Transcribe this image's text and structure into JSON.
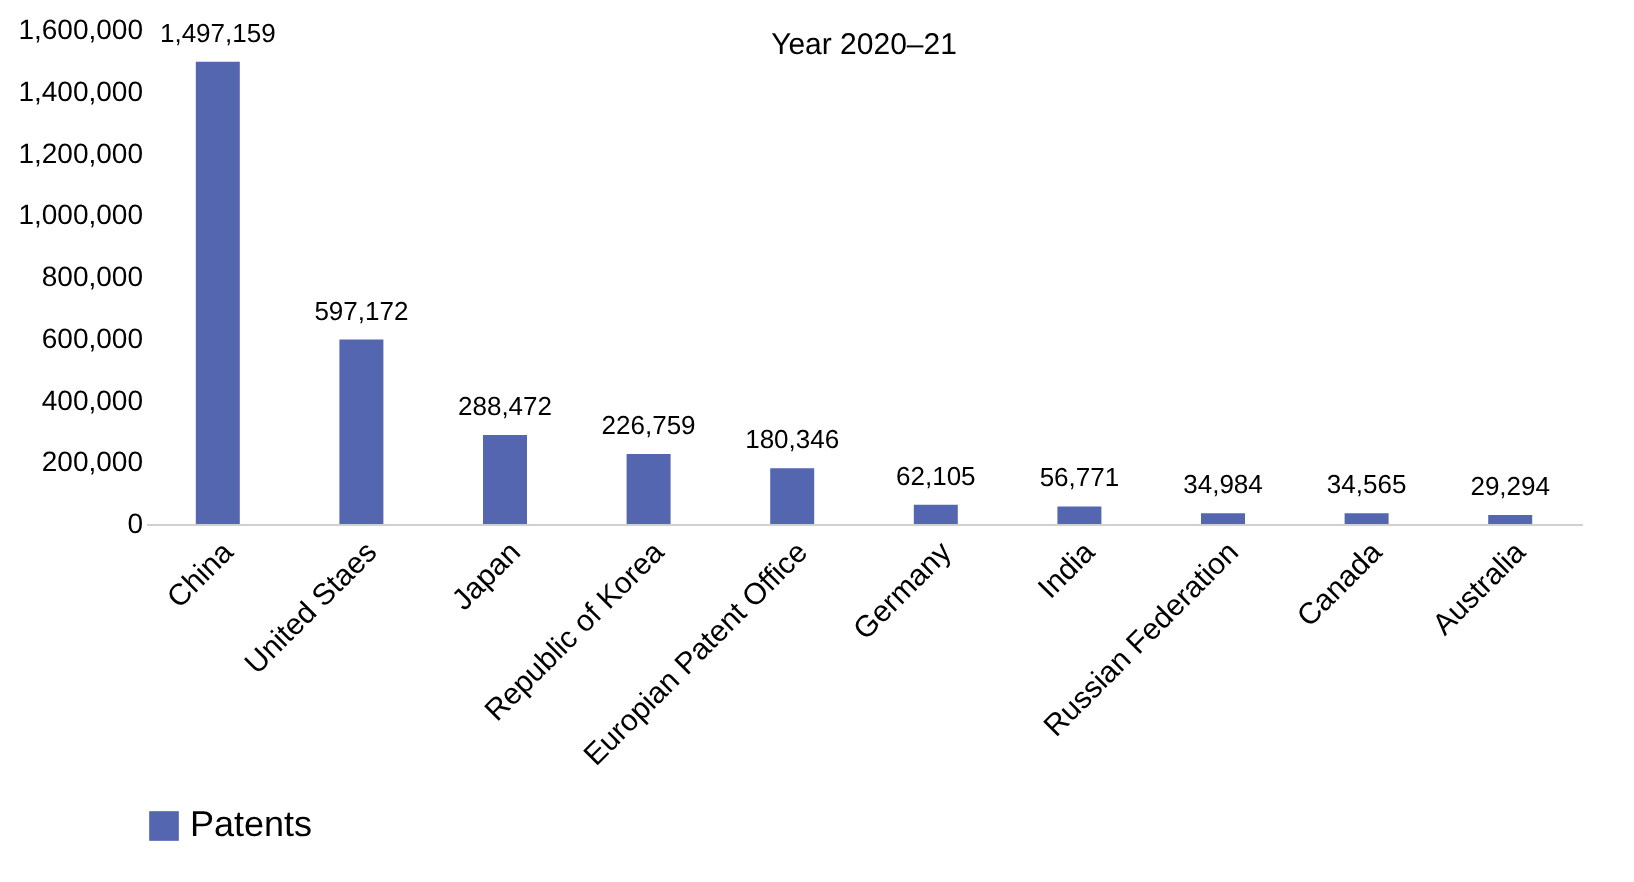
{
  "chart_data": {
    "type": "bar",
    "title": "Year 2020–21",
    "categories": [
      "China",
      "United Staes",
      "Japan",
      "Republic of Korea",
      "Europian Patent Office",
      "Germany",
      "India",
      "Russian Federation",
      "Canada",
      "Australia"
    ],
    "series": [
      {
        "name": "Patents",
        "color": "#5566b0",
        "values": [
          1497159,
          597172,
          288472,
          226759,
          180346,
          62105,
          56771,
          34984,
          34565,
          29294
        ],
        "value_labels": [
          "1,497,159",
          "597,172",
          "288,472",
          "226,759",
          "180,346",
          "62,105",
          "56,771",
          "34,984",
          "34,565",
          "29,294"
        ]
      }
    ],
    "ylim": [
      0,
      1600000
    ],
    "yticks": [
      {
        "value": 0,
        "label": "0"
      },
      {
        "value": 200000,
        "label": "200,000"
      },
      {
        "value": 400000,
        "label": "400,000"
      },
      {
        "value": 600000,
        "label": "600,000"
      },
      {
        "value": 800000,
        "label": "800,000"
      },
      {
        "value": 1000000,
        "label": "1,000,000"
      },
      {
        "value": 1200000,
        "label": "1,200,000"
      },
      {
        "value": 1400000,
        "label": "1,400,000"
      },
      {
        "value": 1600000,
        "label": "1,600,000"
      }
    ],
    "legend": "bottom"
  }
}
